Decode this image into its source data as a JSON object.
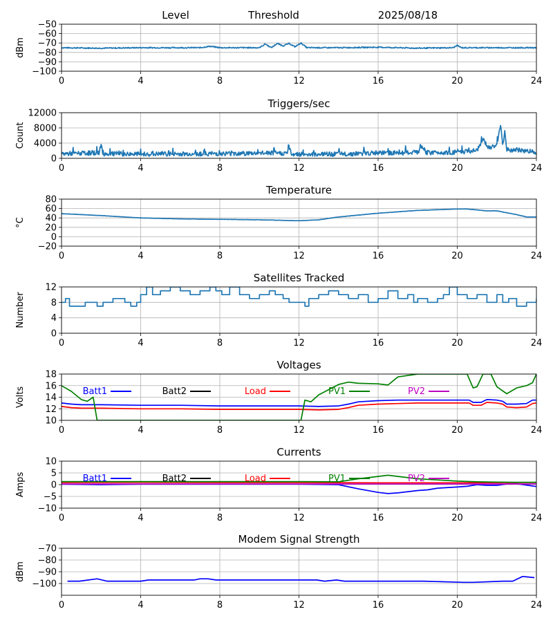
{
  "header": {
    "level": "Level",
    "threshold": "Threshold",
    "date": "2025/08/18"
  },
  "colors": {
    "series_default": "#1f77b4",
    "grid": "#b0b0b0",
    "batt1": "#0000ff",
    "batt2": "#000000",
    "load": "#ff0000",
    "pv1": "#008000",
    "pv2": "#bf00bf",
    "modem": "#0000ff"
  },
  "chart_data": [
    {
      "type": "line",
      "title": "",
      "ylabel": "dBm",
      "xlim": [
        0,
        24
      ],
      "ylim": [
        -100,
        -50
      ],
      "grid": true,
      "xticks": [
        0,
        4,
        8,
        12,
        16,
        20,
        24
      ],
      "yticks": [
        -100,
        -90,
        -80,
        -70,
        -60,
        -50
      ],
      "series": [
        {
          "color": "#1f77b4",
          "noise": 0.6,
          "x": [
            0,
            2,
            4,
            7,
            7.5,
            8,
            10,
            10.3,
            10.6,
            10.9,
            11.2,
            11.5,
            11.8,
            12.1,
            12.4,
            14,
            16,
            18,
            19.8,
            20,
            20.2,
            22,
            24
          ],
          "y": [
            -75,
            -75.5,
            -75,
            -75,
            -73.5,
            -75,
            -75,
            -71,
            -75,
            -70.5,
            -73,
            -70.5,
            -74,
            -70,
            -75,
            -75,
            -74.5,
            -75.5,
            -75,
            -72.5,
            -75,
            -75,
            -75
          ]
        }
      ]
    },
    {
      "type": "line",
      "title": "Triggers/sec",
      "ylabel": "Count",
      "xlim": [
        0,
        24
      ],
      "ylim": [
        0,
        12000
      ],
      "grid": true,
      "xticks": [
        0,
        4,
        8,
        12,
        16,
        20,
        24
      ],
      "yticks": [
        0,
        4000,
        8000,
        12000
      ],
      "series": [
        {
          "color": "#1f77b4",
          "noise": 600,
          "x": [
            0,
            1,
            1.9,
            2.0,
            2.1,
            4,
            7,
            9.2,
            10.5,
            11.4,
            11.5,
            11.6,
            12,
            14,
            16,
            18,
            18.2,
            18.4,
            20,
            21,
            21.3,
            21.6,
            22,
            22.2,
            22.3,
            22.4,
            22.5,
            23,
            24
          ],
          "y": [
            1200,
            1300,
            1500,
            3500,
            1200,
            1100,
            1200,
            1300,
            1400,
            1300,
            3200,
            1200,
            1100,
            1100,
            1400,
            1500,
            3300,
            1500,
            1600,
            2000,
            5000,
            2500,
            3500,
            8800,
            3000,
            7000,
            2200,
            2200,
            1700
          ]
        }
      ]
    },
    {
      "type": "line",
      "title": "Temperature",
      "ylabel": "°C",
      "xlim": [
        0,
        24
      ],
      "ylim": [
        -20,
        80
      ],
      "grid": true,
      "xticks": [
        0,
        4,
        8,
        12,
        16,
        20,
        24
      ],
      "yticks": [
        -20,
        0,
        20,
        40,
        60,
        80
      ],
      "series": [
        {
          "color": "#1f77b4",
          "noise": 0.3,
          "x": [
            0,
            2,
            4,
            6,
            8,
            10,
            12,
            13,
            14,
            16,
            18,
            20,
            20.5,
            21.5,
            22,
            23,
            23.5,
            24
          ],
          "y": [
            49,
            45,
            40,
            38,
            37,
            36,
            34,
            36,
            42,
            50,
            56,
            59,
            59,
            55,
            55,
            47,
            42,
            42
          ]
        }
      ]
    },
    {
      "type": "line",
      "title": "Satellites Tracked",
      "ylabel": "Number",
      "xlim": [
        0,
        24
      ],
      "ylim": [
        0,
        12
      ],
      "grid": true,
      "xticks": [
        0,
        4,
        8,
        12,
        16,
        20,
        24
      ],
      "yticks": [
        0,
        4,
        8,
        12
      ],
      "series": [
        {
          "color": "#1f77b4",
          "step": true,
          "x": [
            0,
            0.2,
            0.4,
            1.2,
            1.8,
            2.1,
            2.6,
            3.2,
            3.5,
            3.8,
            4.0,
            4.3,
            4.6,
            5.0,
            5.5,
            6.0,
            6.5,
            7.0,
            7.5,
            7.8,
            8.1,
            8.5,
            9.0,
            9.5,
            10.0,
            10.5,
            10.8,
            11.2,
            11.5,
            12.0,
            12.3,
            12.5,
            13.0,
            13.5,
            14.0,
            14.5,
            15.0,
            15.5,
            16.0,
            16.5,
            17.0,
            17.5,
            17.8,
            18.0,
            18.5,
            19.0,
            19.3,
            19.6,
            20.0,
            20.5,
            21.0,
            21.5,
            22.0,
            22.3,
            22.6,
            23.0,
            23.5,
            24
          ],
          "y": [
            8,
            9,
            7,
            8,
            7,
            8,
            9,
            8,
            7,
            8,
            10,
            12,
            10,
            11,
            12,
            11,
            10,
            11,
            12,
            11,
            10,
            12,
            10,
            9,
            10,
            11,
            10,
            9,
            8,
            8,
            7,
            9,
            10,
            11,
            10,
            9,
            10,
            8,
            9,
            11,
            9,
            10,
            8,
            9,
            8,
            9,
            10,
            12,
            10,
            9,
            10,
            8,
            10,
            8,
            9,
            7,
            8,
            9
          ]
        }
      ]
    },
    {
      "type": "line",
      "title": "Voltages",
      "ylabel": "Volts",
      "xlim": [
        0,
        24
      ],
      "ylim": [
        10,
        18
      ],
      "grid": true,
      "xticks": [
        0,
        4,
        8,
        12,
        16,
        20,
        24
      ],
      "yticks": [
        10,
        12,
        14,
        16,
        18
      ],
      "legend": [
        "Batt1",
        "Batt2",
        "Load",
        "PV1",
        "PV2"
      ],
      "series": [
        {
          "name": "Batt1",
          "color": "#0000ff",
          "x": [
            0,
            0.5,
            1,
            2,
            4,
            6,
            8,
            10,
            12,
            13,
            14,
            14.5,
            15,
            16,
            17,
            18,
            19,
            20,
            20.6,
            20.8,
            21.2,
            21.5,
            22,
            22.3,
            22.5,
            23,
            23.5,
            23.8,
            24
          ],
          "y": [
            13,
            12.8,
            12.7,
            12.7,
            12.6,
            12.6,
            12.5,
            12.5,
            12.5,
            12.4,
            12.5,
            12.8,
            13.2,
            13.4,
            13.5,
            13.5,
            13.5,
            13.5,
            13.5,
            13.1,
            13.1,
            13.6,
            13.5,
            13.3,
            12.8,
            12.8,
            12.9,
            13.5,
            13.5
          ]
        },
        {
          "name": "Load",
          "color": "#ff0000",
          "x": [
            0,
            0.5,
            1,
            2,
            4,
            6,
            8,
            10,
            12,
            13,
            14,
            14.5,
            15,
            16,
            17,
            18,
            19,
            20,
            20.6,
            20.8,
            21.2,
            21.5,
            22,
            22.3,
            22.5,
            23,
            23.5,
            23.8,
            24
          ],
          "y": [
            12.4,
            12.2,
            12.1,
            12.1,
            12.0,
            12.0,
            11.9,
            11.9,
            11.9,
            11.8,
            11.9,
            12.2,
            12.6,
            12.8,
            12.9,
            13.0,
            13.0,
            13.0,
            13.0,
            12.6,
            12.6,
            13.1,
            13.0,
            12.8,
            12.3,
            12.2,
            12.3,
            12.9,
            13.0
          ]
        },
        {
          "name": "PV1",
          "color": "#008000",
          "x": [
            0,
            0.5,
            1,
            1.3,
            1.6,
            1.8,
            12.1,
            12.3,
            12.6,
            13,
            13.5,
            14,
            14.5,
            15,
            16,
            16.5,
            17,
            18,
            19,
            20,
            20.5,
            20.8,
            21,
            21.3,
            21.7,
            22,
            22.5,
            23,
            23.5,
            23.8,
            24
          ],
          "y": [
            16,
            15,
            13.6,
            13.3,
            14,
            10,
            10,
            13.5,
            13.2,
            14.4,
            15.3,
            16.2,
            16.6,
            16.4,
            16.3,
            16.1,
            17.5,
            18,
            18,
            18,
            18,
            15.6,
            15.8,
            18,
            18,
            15.8,
            14.6,
            15.6,
            16,
            16.5,
            18
          ]
        }
      ]
    },
    {
      "type": "line",
      "title": "Currents",
      "ylabel": "Amps",
      "xlim": [
        0,
        24
      ],
      "ylim": [
        -10,
        10
      ],
      "grid": true,
      "xticks": [
        0,
        4,
        8,
        12,
        16,
        20,
        24
      ],
      "yticks": [
        -10,
        -5,
        0,
        5,
        10
      ],
      "legend": [
        "Batt1",
        "Batt2",
        "Load",
        "PV1",
        "PV2"
      ],
      "series": [
        {
          "name": "Batt1",
          "color": "#0000ff",
          "x": [
            0,
            2,
            4,
            8,
            12,
            14,
            15,
            16,
            16.5,
            17,
            18,
            18.5,
            19,
            20,
            20.5,
            21,
            21.5,
            22,
            22.5,
            23,
            23.5,
            24
          ],
          "y": [
            0.2,
            0,
            0.2,
            0.2,
            0.2,
            0,
            -1.8,
            -3.3,
            -3.8,
            -3.5,
            -2.5,
            -2.2,
            -1.5,
            -1,
            -0.7,
            0,
            -0.3,
            -0.3,
            0.3,
            0.4,
            -0.2,
            -0.8
          ]
        },
        {
          "name": "Load",
          "color": "#ff0000",
          "x": [
            0,
            4,
            8,
            12,
            16,
            20,
            24
          ],
          "y": [
            0.9,
            1,
            0.9,
            0.9,
            0.8,
            0.8,
            0.9
          ]
        },
        {
          "name": "PV1",
          "color": "#008000",
          "x": [
            0,
            4,
            8,
            12,
            14,
            15,
            16,
            16.5,
            17,
            18,
            19,
            20,
            21,
            22,
            23,
            24
          ],
          "y": [
            1.3,
            1.3,
            1.3,
            1.3,
            1.2,
            2.5,
            3.5,
            4,
            3.5,
            2.5,
            2,
            1.5,
            1.2,
            1.1,
            1,
            1
          ]
        },
        {
          "name": "PV2",
          "color": "#bf00bf",
          "x": [
            0,
            24
          ],
          "y": [
            0.3,
            0.3
          ]
        }
      ]
    },
    {
      "type": "line",
      "title": "Modem Signal Strength",
      "ylabel": "dBm",
      "xlim": [
        0,
        24
      ],
      "ylim": [
        -110,
        -70
      ],
      "grid": true,
      "xticks": [
        0,
        4,
        8,
        12,
        16,
        20,
        24
      ],
      "yticks": [
        -100,
        -90,
        -80,
        -70
      ],
      "series": [
        {
          "name": "Modem",
          "color": "#0000ff",
          "x": [
            0.3,
            0.9,
            1.8,
            2.3,
            4.0,
            4.4,
            6.7,
            7.0,
            7.4,
            7.8,
            12.9,
            13.3,
            13.9,
            14.3,
            18.3,
            20.3,
            20.8,
            22.3,
            22.8,
            23.3,
            23.9
          ],
          "y": [
            -98,
            -98,
            -96,
            -98,
            -98,
            -97,
            -97,
            -96,
            -96,
            -97,
            -97,
            -98,
            -97,
            -98,
            -98,
            -99,
            -99,
            -98,
            -98,
            -94,
            -95
          ]
        }
      ]
    }
  ]
}
